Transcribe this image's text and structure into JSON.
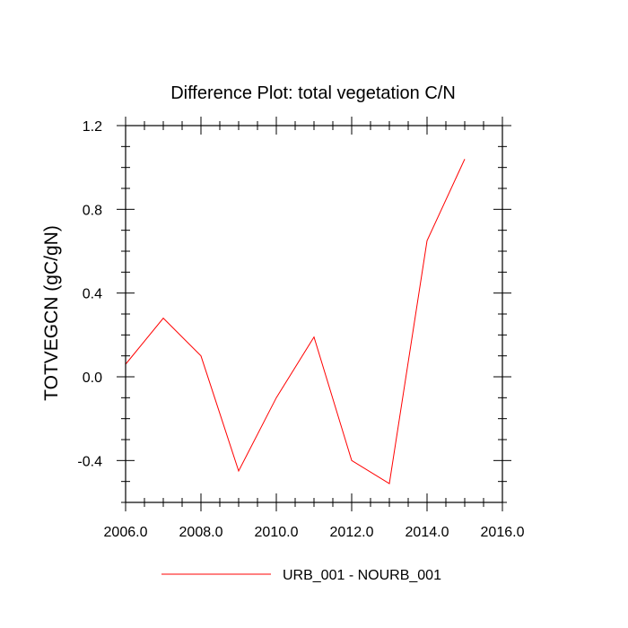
{
  "chart_data": {
    "type": "line",
    "title": "Difference Plot: total vegetation C/N",
    "xlabel": "",
    "ylabel": "TOTVEGCN  (gC/gN)",
    "xlim": [
      2006.0,
      2016.0
    ],
    "ylim": [
      -0.6,
      1.2
    ],
    "x_ticks": [
      2006.0,
      2008.0,
      2010.0,
      2012.0,
      2014.0,
      2016.0
    ],
    "x_tick_labels": [
      "2006.0",
      "2008.0",
      "2010.0",
      "2012.0",
      "2014.0",
      "2016.0"
    ],
    "y_ticks": [
      -0.4,
      0.0,
      0.4,
      0.8,
      1.2
    ],
    "y_tick_labels": [
      "-0.4",
      "0.0",
      "0.4",
      "0.8",
      "1.2"
    ],
    "grid": false,
    "legend_position": "bottom-center",
    "series": [
      {
        "name": "URB_001 - NOURB_001",
        "color": "#ff0000",
        "x": [
          2006,
          2007,
          2008,
          2009,
          2010,
          2011,
          2012,
          2013,
          2014,
          2015
        ],
        "y": [
          0.06,
          0.28,
          0.1,
          -0.45,
          -0.1,
          0.19,
          -0.4,
          -0.51,
          0.65,
          1.04
        ]
      }
    ]
  }
}
